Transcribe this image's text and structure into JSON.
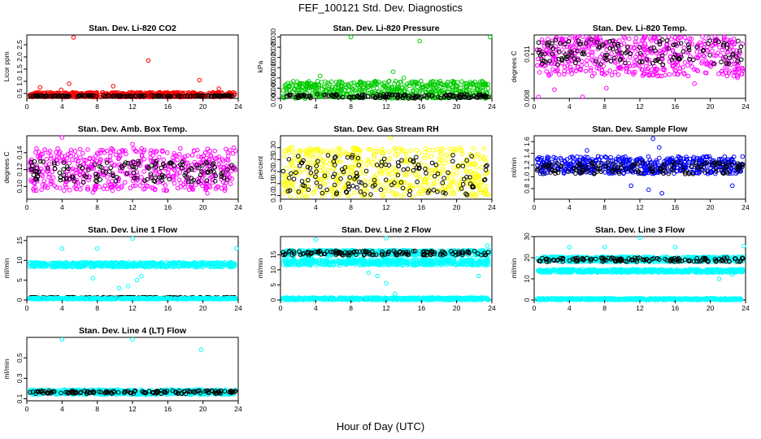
{
  "title": "FEF_100121  Std. Dev. Diagnostics",
  "xlabel": "Hour of Day (UTC)",
  "x_ticks": [
    0,
    4,
    8,
    12,
    16,
    20,
    24
  ],
  "colors": {
    "red": "#ff0000",
    "green": "#00cc00",
    "magenta": "#ff00ff",
    "yellow": "#ffff00",
    "blue": "#0000ff",
    "cyan": "#00ffff",
    "black": "#000000"
  },
  "chart_data": [
    {
      "type": "scatter",
      "title": "Stan. Dev. Li-820 CO2",
      "ylabel": "Licor ppm",
      "xlim": [
        0,
        24
      ],
      "ylim": [
        0.3,
        2.9
      ],
      "yticks": [
        0.5,
        1.0,
        1.5,
        2.0,
        2.5
      ],
      "ytick_labels": [
        "0.5",
        "1.0",
        "1.5",
        "2.0",
        "2.5"
      ],
      "color": "red",
      "bands": [
        {
          "color": "red",
          "low": 0.35,
          "high": 0.55
        },
        {
          "color": "black",
          "low": 0.38,
          "high": 0.42
        }
      ],
      "points": [
        [
          5.3,
          2.8
        ],
        [
          13.8,
          1.85
        ],
        [
          19.6,
          1.05
        ],
        [
          4.8,
          0.9
        ],
        [
          9.8,
          0.8
        ],
        [
          21.8,
          0.7
        ],
        [
          1.5,
          0.75
        ],
        [
          3.9,
          0.65
        ]
      ]
    },
    {
      "type": "scatter",
      "title": "Stan. Dev. Li-820 Pressure",
      "ylabel": "kPa",
      "xlim": [
        0,
        24
      ],
      "ylim": [
        0,
        0.031
      ],
      "yticks": [
        0.0,
        0.005,
        0.01,
        0.015,
        0.02,
        0.025,
        0.03
      ],
      "ytick_labels": [
        "0.000",
        "0.005",
        "0.010",
        "0.015",
        "0.020",
        "0.025",
        "0.030"
      ],
      "color": "green",
      "bands": [
        {
          "color": "green",
          "low": 0.0,
          "high": 0.0085
        },
        {
          "color": "black",
          "low": 0.0,
          "high": 0.002
        }
      ],
      "points": [
        [
          8.0,
          0.03
        ],
        [
          23.8,
          0.03
        ],
        [
          15.8,
          0.028
        ],
        [
          12.8,
          0.013
        ],
        [
          4.5,
          0.011
        ],
        [
          14.0,
          0.01
        ]
      ]
    },
    {
      "type": "scatter",
      "title": "Stan. Dev. Li-820 Temp.",
      "ylabel": "degrees C",
      "xlim": [
        0,
        24
      ],
      "ylim": [
        0.008,
        0.0123
      ],
      "yticks": [
        0.008,
        0.011
      ],
      "ytick_labels": [
        "0.008",
        "0.011"
      ],
      "color": "magenta",
      "bands": [
        {
          "color": "magenta",
          "low": 0.0095,
          "high": 0.0122
        },
        {
          "color": "black",
          "low": 0.0103,
          "high": 0.012
        }
      ],
      "points": [
        [
          0.5,
          0.0081
        ],
        [
          5.5,
          0.0081
        ],
        [
          2.3,
          0.0086
        ],
        [
          8.2,
          0.0087
        ],
        [
          18.2,
          0.009
        ],
        [
          23.1,
          0.0094
        ]
      ]
    },
    {
      "type": "scatter",
      "title": "Stan. Dev. Amb. Box Temp.",
      "ylabel": "degrees C",
      "xlim": [
        0,
        24
      ],
      "ylim": [
        0.085,
        0.16
      ],
      "yticks": [
        0.1,
        0.12,
        0.14
      ],
      "ytick_labels": [
        "0.10",
        "0.12",
        "0.14"
      ],
      "color": "magenta",
      "bands": [
        {
          "color": "magenta",
          "low": 0.095,
          "high": 0.145
        },
        {
          "color": "black",
          "low": 0.105,
          "high": 0.13
        }
      ],
      "points": [
        [
          4.0,
          0.158
        ],
        [
          12.0,
          0.15
        ],
        [
          23.5,
          0.146
        ],
        [
          7.5,
          0.093
        ],
        [
          20.5,
          0.092
        ]
      ]
    },
    {
      "type": "scatter",
      "title": "Stan. Dev. Gas Stream RH",
      "ylabel": "percent",
      "xlim": [
        0,
        24
      ],
      "ylim": [
        0.085,
        0.35
      ],
      "yticks": [
        0.1,
        0.15,
        0.2,
        0.25,
        0.3
      ],
      "ytick_labels": [
        "0.10",
        "0.15",
        "0.20",
        "0.25",
        "0.30"
      ],
      "color": "yellow",
      "bands": [
        {
          "color": "yellow",
          "low": 0.095,
          "high": 0.3
        },
        {
          "color": "black",
          "low": 0.1,
          "high": 0.27
        }
      ],
      "points": [
        [
          12.5,
          0.34
        ],
        [
          1.0,
          0.3
        ],
        [
          9.0,
          0.29
        ]
      ]
    },
    {
      "type": "scatter",
      "title": "Stan. Dev. Sample Flow",
      "ylabel": "ml/min",
      "xlim": [
        0,
        24
      ],
      "ylim": [
        0.62,
        1.7
      ],
      "yticks": [
        0.8,
        1.0,
        1.2,
        1.4,
        1.6
      ],
      "ytick_labels": [
        "0.8",
        "1.0",
        "1.2",
        "1.4",
        "1.6"
      ],
      "color": "blue",
      "bands": [
        {
          "color": "blue",
          "low": 1.05,
          "high": 1.35
        },
        {
          "color": "black",
          "low": 1.05,
          "high": 1.25
        }
      ],
      "points": [
        [
          13.5,
          1.65
        ],
        [
          14.2,
          1.5
        ],
        [
          11.0,
          0.85
        ],
        [
          13.0,
          0.78
        ],
        [
          22.5,
          0.85
        ],
        [
          14.5,
          0.72
        ],
        [
          6.0,
          1.45
        ]
      ]
    },
    {
      "type": "scatter",
      "title": "Stan. Dev. Line 1 Flow",
      "ylabel": "ml/min",
      "xlim": [
        0,
        24
      ],
      "ylim": [
        0,
        16
      ],
      "yticks": [
        0,
        5,
        10,
        15
      ],
      "ytick_labels": [
        "0",
        "5",
        "10",
        "15"
      ],
      "color": "cyan",
      "bands": [
        {
          "color": "cyan",
          "low": 8.3,
          "high": 9.5
        },
        {
          "color": "black",
          "low": 0.5,
          "high": 0.7
        },
        {
          "color": "cyan",
          "low": 0.2,
          "high": 0.5
        }
      ],
      "points": [
        [
          4.0,
          13.0
        ],
        [
          8.0,
          13.0
        ],
        [
          12.0,
          15.5
        ],
        [
          23.8,
          13.0
        ],
        [
          11.5,
          3.5
        ],
        [
          10.5,
          3.0
        ],
        [
          12.5,
          5.0
        ],
        [
          13.0,
          6.0
        ],
        [
          7.5,
          5.5
        ]
      ]
    },
    {
      "type": "scatter",
      "title": "Stan. Dev. Line 2 Flow",
      "ylabel": "ml/min",
      "xlim": [
        0,
        24
      ],
      "ylim": [
        0,
        21
      ],
      "yticks": [
        0,
        5,
        10,
        15
      ],
      "ytick_labels": [
        "0",
        "5",
        "10",
        "15"
      ],
      "color": "cyan",
      "bands": [
        {
          "color": "cyan",
          "low": 14.8,
          "high": 16.5
        },
        {
          "color": "black",
          "low": 14.8,
          "high": 16.3
        },
        {
          "color": "cyan",
          "low": 11.5,
          "high": 13.5
        },
        {
          "color": "cyan",
          "low": 0.0,
          "high": 0.8
        }
      ],
      "points": [
        [
          12.0,
          20.5
        ],
        [
          4.0,
          20.0
        ],
        [
          13.0,
          2.0
        ],
        [
          12.0,
          5.5
        ],
        [
          11.0,
          8.0
        ],
        [
          22.5,
          8.0
        ],
        [
          23.5,
          18.0
        ],
        [
          10.0,
          9.0
        ]
      ]
    },
    {
      "type": "scatter",
      "title": "Stan. Dev. Line 3 Flow",
      "ylabel": "ml/min",
      "xlim": [
        0,
        24
      ],
      "ylim": [
        0,
        30
      ],
      "yticks": [
        0,
        10,
        20,
        30
      ],
      "ytick_labels": [
        "0",
        "10",
        "20",
        "30"
      ],
      "color": "cyan",
      "bands": [
        {
          "color": "cyan",
          "low": 18.0,
          "high": 20.5
        },
        {
          "color": "black",
          "low": 18.0,
          "high": 20.0
        },
        {
          "color": "cyan",
          "low": 13.0,
          "high": 14.5
        },
        {
          "color": "cyan",
          "low": 0.0,
          "high": 0.8
        }
      ],
      "points": [
        [
          12.0,
          29.5
        ],
        [
          4.0,
          25.0
        ],
        [
          8.0,
          25.0
        ],
        [
          16.0,
          25.0
        ],
        [
          23.8,
          25.5
        ],
        [
          21.0,
          10.0
        ],
        [
          22.5,
          12.0
        ]
      ]
    },
    {
      "type": "scatter",
      "title": "Stan. Dev. Line 4 (LT) Flow",
      "ylabel": "ml/min",
      "xlim": [
        0,
        24
      ],
      "ylim": [
        0.08,
        0.7
      ],
      "yticks": [
        0.1,
        0.3,
        0.5
      ],
      "ytick_labels": [
        "0.1",
        "0.3",
        "0.5"
      ],
      "color": "cyan",
      "bands": [
        {
          "color": "cyan",
          "low": 0.14,
          "high": 0.19
        },
        {
          "color": "black",
          "low": 0.15,
          "high": 0.18
        }
      ],
      "points": [
        [
          4.0,
          0.68
        ],
        [
          12.0,
          0.68
        ],
        [
          19.8,
          0.58
        ]
      ]
    }
  ]
}
